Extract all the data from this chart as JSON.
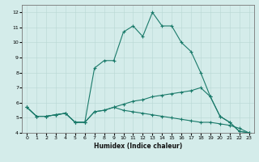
{
  "title": "",
  "xlabel": "Humidex (Indice chaleur)",
  "ylabel": "",
  "xlim": [
    -0.5,
    23.5
  ],
  "ylim": [
    4,
    12.5
  ],
  "xticks": [
    0,
    1,
    2,
    3,
    4,
    5,
    6,
    7,
    8,
    9,
    10,
    11,
    12,
    13,
    14,
    15,
    16,
    17,
    18,
    19,
    20,
    21,
    22,
    23
  ],
  "yticks": [
    4,
    5,
    6,
    7,
    8,
    9,
    10,
    11,
    12
  ],
  "bg_color": "#d4ecea",
  "grid_color": "#b8d8d4",
  "line_color": "#1a7a6a",
  "lines": [
    {
      "x": [
        0,
        1,
        2,
        3,
        4,
        5,
        6,
        7,
        8,
        9,
        10,
        11,
        12,
        13,
        14,
        15,
        16,
        17,
        18,
        19,
        20,
        21,
        22,
        23
      ],
      "y": [
        5.7,
        5.1,
        5.1,
        5.2,
        5.3,
        4.7,
        4.7,
        8.3,
        8.8,
        8.8,
        10.7,
        11.1,
        10.4,
        12.0,
        11.1,
        11.1,
        10.0,
        9.4,
        8.0,
        6.4,
        5.1,
        4.7,
        4.1,
        4.0
      ]
    },
    {
      "x": [
        0,
        1,
        2,
        3,
        4,
        5,
        6,
        7,
        8,
        9,
        10,
        11,
        12,
        13,
        14,
        15,
        16,
        17,
        18,
        19,
        20,
        21,
        22,
        23
      ],
      "y": [
        5.7,
        5.1,
        5.1,
        5.2,
        5.3,
        4.7,
        4.7,
        5.4,
        5.5,
        5.7,
        5.9,
        6.1,
        6.2,
        6.4,
        6.5,
        6.6,
        6.7,
        6.8,
        7.0,
        6.4,
        5.1,
        4.7,
        4.1,
        4.0
      ]
    },
    {
      "x": [
        0,
        1,
        2,
        3,
        4,
        5,
        6,
        7,
        8,
        9,
        10,
        11,
        12,
        13,
        14,
        15,
        16,
        17,
        18,
        19,
        20,
        21,
        22,
        23
      ],
      "y": [
        5.7,
        5.1,
        5.1,
        5.2,
        5.3,
        4.7,
        4.7,
        5.4,
        5.5,
        5.7,
        5.5,
        5.4,
        5.3,
        5.2,
        5.1,
        5.0,
        4.9,
        4.8,
        4.7,
        4.7,
        4.6,
        4.5,
        4.3,
        4.0
      ]
    }
  ],
  "xlabel_fontsize": 5.5,
  "xlabel_fontweight": "bold",
  "tick_fontsize": 4.5,
  "linewidth": 0.8,
  "markersize": 2.5
}
